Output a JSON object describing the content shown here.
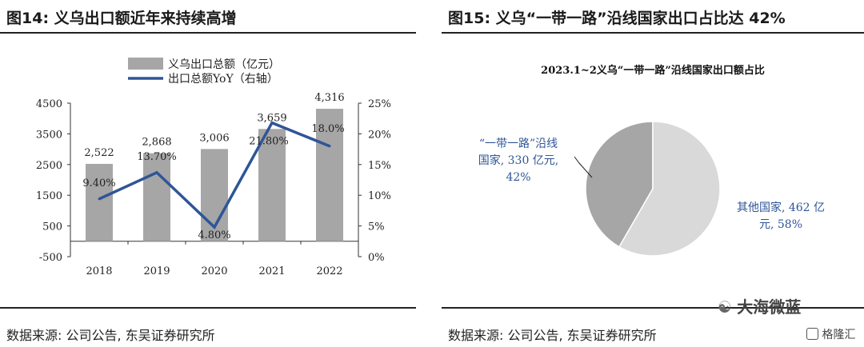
{
  "left": {
    "figure_title": "图14: 义乌出口额近年来持续高增",
    "source": "数据来源: 公司公告, 东吴证券研究所"
  },
  "right": {
    "figure_title": "图15: 义乌“一带一路”沿线国家出口占比达 42%",
    "source": "数据来源: 公司公告, 东吴证券研究所"
  },
  "watermark": {
    "text1": "大海微蓝",
    "text2": "格隆汇"
  },
  "chart_data": [
    {
      "type": "bar",
      "title": "",
      "categories": [
        "2018",
        "2019",
        "2020",
        "2021",
        "2022"
      ],
      "series": [
        {
          "name": "义乌出口总额（亿元）",
          "type": "bar",
          "axis": "left",
          "values": [
            2522,
            2868,
            3006,
            3659,
            4316
          ],
          "labels": [
            "2,522",
            "2,868",
            "3,006",
            "3,659",
            "4,316"
          ],
          "color": "#a6a6a6"
        },
        {
          "name": "出口总额YoY（右轴）",
          "type": "line",
          "axis": "right",
          "values": [
            9.4,
            13.7,
            4.8,
            21.8,
            18.0
          ],
          "labels": [
            "9.40%",
            "13.70%",
            "4.80%",
            "21.80%",
            "18.0%"
          ],
          "color": "#2f5597"
        }
      ],
      "yleft": {
        "ylim": [
          -500,
          4500
        ],
        "ticks": [
          4500,
          3500,
          2500,
          1500,
          500,
          -500
        ]
      },
      "yright": {
        "ylim": [
          0,
          25
        ],
        "ticks": [
          "25%",
          "20%",
          "15%",
          "10%",
          "5%",
          "0%"
        ]
      },
      "legend_position": "top",
      "grid": false
    },
    {
      "type": "pie",
      "title": "2023.1~2义乌“一带一路”沿线国家出口额占比",
      "slices": [
        {
          "name": "“一带一路”沿线国家",
          "value": 330,
          "unit": "亿元",
          "percent": "42%",
          "label_lines": [
            "“一带一路”沿线",
            "国家, 330 亿元,",
            "42%"
          ],
          "color": "#a6a6a6"
        },
        {
          "name": "其他国家",
          "value": 462,
          "unit": "亿元",
          "percent": "58%",
          "label_lines": [
            "其他国家, 462 亿",
            "元, 58%"
          ],
          "color": "#d9d9d9"
        }
      ]
    }
  ]
}
